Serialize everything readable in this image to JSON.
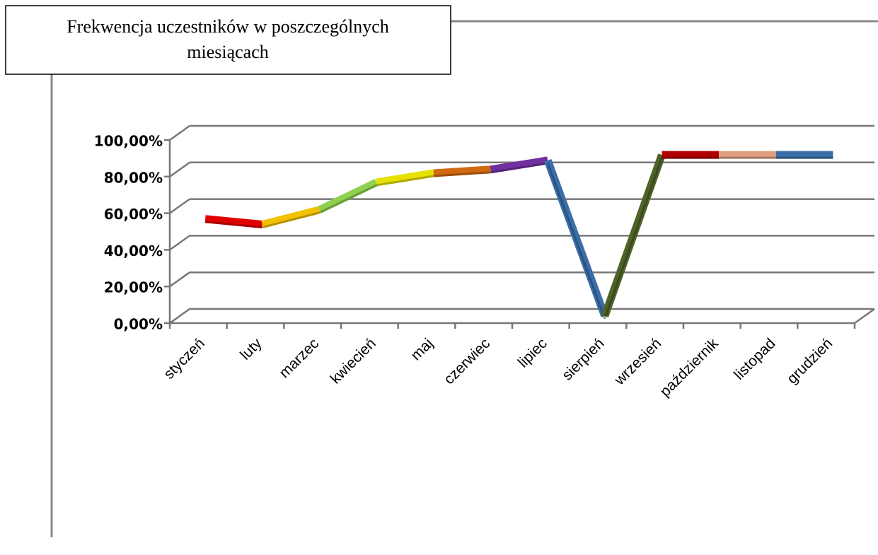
{
  "chart_data": {
    "type": "line3d",
    "title": "Frekwencja uczestników w poszczególnych miesiącach",
    "categories": [
      "styczeń",
      "luty",
      "marzec",
      "kwiecień",
      "maj",
      "czerwiec",
      "lipiec",
      "sierpień",
      "wrzesień",
      "październik",
      "listopad",
      "grudzień"
    ],
    "values": [
      53,
      50,
      58,
      73,
      78,
      80,
      85,
      0,
      88,
      88,
      88,
      88
    ],
    "segment_colors": [
      "#e00000",
      "#f2c200",
      "#8fd14f",
      "#e8e000",
      "#d06a10",
      "#7030a0",
      "#3b6ea8",
      "#4f6228",
      "#b00000",
      "#e0a080",
      "#3b6ea8"
    ],
    "ylim": [
      0,
      100
    ],
    "yticks": [
      {
        "value": 0,
        "label": "0,00%"
      },
      {
        "value": 20,
        "label": "20,00%"
      },
      {
        "value": 40,
        "label": "40,00%"
      },
      {
        "value": 60,
        "label": "60,00%"
      },
      {
        "value": 80,
        "label": "80,00%"
      },
      {
        "value": 100,
        "label": "100,00%"
      }
    ],
    "grid": true
  }
}
